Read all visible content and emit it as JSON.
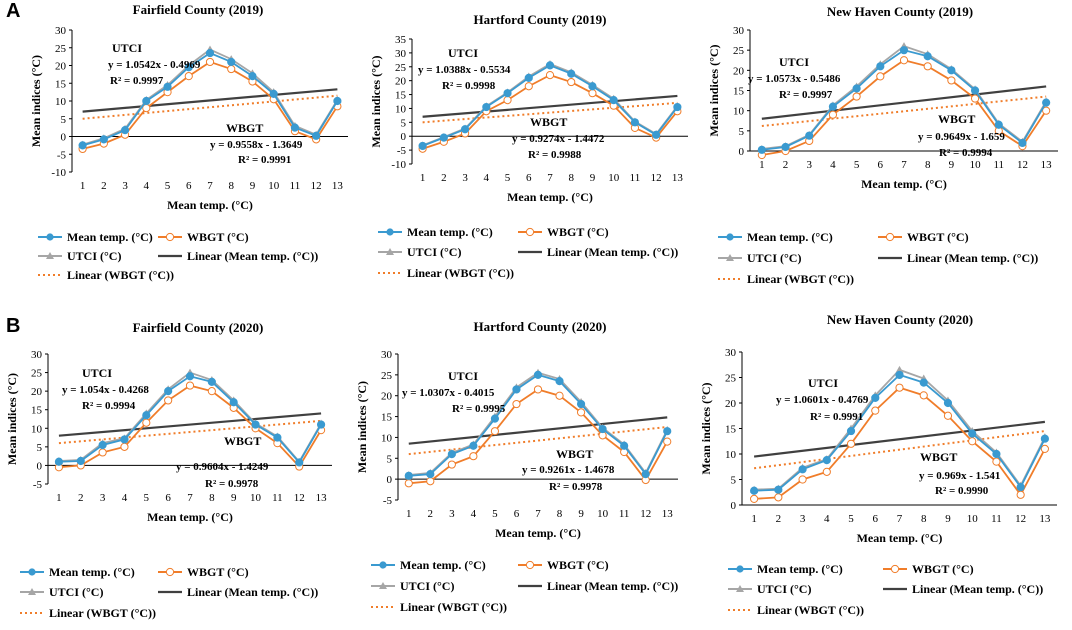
{
  "figure": {
    "panel_a": "A",
    "panel_b": "B"
  },
  "colors": {
    "mean": "#3A9AD0",
    "wbgt": "#F07D2A",
    "utci": "#A6A6A6",
    "linear_mean": "#404040",
    "linear_wbgt": "#F07D2A"
  },
  "legend": {
    "mean": "Mean temp. (°C)",
    "wbgt": "WBGT (°C)",
    "utci": "UTCI (°C)",
    "linear_mean": "Linear (Mean temp. (°C))",
    "linear_wbgt": "Linear (WBGT (°C))"
  },
  "chart_data": [
    {
      "type": "line",
      "title": "Fairfield County (2019)",
      "xlabel": "Mean temp. (°C)",
      "ylabel": "Mean indices (°C)",
      "x": [
        1,
        2,
        3,
        4,
        5,
        6,
        7,
        8,
        9,
        10,
        11,
        12,
        13
      ],
      "ylim": [
        -10,
        30
      ],
      "yticks": [
        -10,
        -5,
        0,
        5,
        10,
        15,
        20,
        25,
        30
      ],
      "series": [
        {
          "name": "Mean temp. (°C)",
          "values": [
            -2.5,
            -0.8,
            1.8,
            10,
            14,
            19.5,
            23.5,
            21,
            17,
            12,
            2.5,
            0.2,
            10
          ]
        },
        {
          "name": "WBGT (°C)",
          "values": [
            -3.5,
            -2,
            0.5,
            8,
            12.5,
            17,
            21,
            19,
            15.5,
            10.5,
            1.5,
            -0.8,
            8.5
          ]
        },
        {
          "name": "UTCI (°C)",
          "values": [
            -2.3,
            -0.5,
            2.2,
            10.3,
            14.5,
            20,
            24.5,
            21.8,
            17.8,
            12.5,
            3,
            0.5,
            10.3
          ]
        }
      ],
      "trend": {
        "mean": [
          7,
          13.3
        ],
        "wbgt": [
          5,
          11.5
        ]
      },
      "annotations": {
        "utci_label": "UTCI",
        "utci_eq": "y = 1.0542x - 0.4969",
        "utci_r2": "R² = 0.9997",
        "wbgt_label": "WBGT",
        "wbgt_eq": "y = 0.9558x - 1.3649",
        "wbgt_r2": "R² = 0.9991"
      }
    },
    {
      "type": "line",
      "title": "Hartford County (2019)",
      "xlabel": "Mean temp. (°C)",
      "ylabel": "Mean indices (°C)",
      "x": [
        1,
        2,
        3,
        4,
        5,
        6,
        7,
        8,
        9,
        10,
        11,
        12,
        13
      ],
      "ylim": [
        -10,
        35
      ],
      "yticks": [
        -10,
        -5,
        0,
        5,
        10,
        15,
        20,
        25,
        30,
        35
      ],
      "series": [
        {
          "name": "Mean temp. (°C)",
          "values": [
            -3.5,
            -0.5,
            2.5,
            10.5,
            15.5,
            21,
            25.5,
            22.5,
            18,
            13,
            5,
            0.5,
            10.5
          ]
        },
        {
          "name": "WBGT (°C)",
          "values": [
            -4.5,
            -2,
            1,
            9,
            13,
            18,
            22,
            19.5,
            15.5,
            11,
            3,
            -0.5,
            9
          ]
        },
        {
          "name": "UTCI (°C)",
          "values": [
            -3.3,
            -0.3,
            2.8,
            10.8,
            15.8,
            21.5,
            26,
            23,
            18.5,
            13.5,
            5.3,
            0.8,
            10.8
          ]
        }
      ],
      "trend": {
        "mean": [
          7,
          14.5
        ],
        "wbgt": [
          5,
          12
        ]
      },
      "annotations": {
        "utci_label": "UTCI",
        "utci_eq": "y = 1.0388x - 0.5534",
        "utci_r2": "R² = 0.9998",
        "wbgt_label": "WBGT",
        "wbgt_eq": "y = 0.9274x - 1.4472",
        "wbgt_r2": "R² = 0.9988"
      }
    },
    {
      "type": "line",
      "title": "New Haven County (2019)",
      "xlabel": "Mean temp. (°C)",
      "ylabel": "Mean indices (°C)",
      "x": [
        1,
        2,
        3,
        4,
        5,
        6,
        7,
        8,
        9,
        10,
        11,
        12,
        13
      ],
      "ylim": [
        0,
        30
      ],
      "yticks": [
        0,
        5,
        10,
        15,
        20,
        25,
        30
      ],
      "series": [
        {
          "name": "Mean temp. (°C)",
          "values": [
            0.3,
            1,
            3.8,
            11,
            15.5,
            21,
            25,
            23.5,
            20,
            15,
            6.5,
            2,
            12
          ]
        },
        {
          "name": "WBGT (°C)",
          "values": [
            -1,
            0,
            2.5,
            9,
            13.5,
            18.5,
            22.5,
            21,
            17.5,
            13,
            5,
            1.2,
            10
          ]
        },
        {
          "name": "UTCI (°C)",
          "values": [
            0.5,
            1.2,
            4,
            11.3,
            16,
            21.5,
            26,
            24,
            20.3,
            15.3,
            6.8,
            2.3,
            12.3
          ]
        }
      ],
      "trend": {
        "mean": [
          8,
          16
        ],
        "wbgt": [
          6.2,
          13.5
        ]
      },
      "annotations": {
        "utci_label": "UTCI",
        "utci_eq": "y = 1.0573x - 0.5486",
        "utci_r2": "R² = 0.9997",
        "wbgt_label": "WBGT",
        "wbgt_eq": "y = 0.9649x - 1.659",
        "wbgt_r2": "R² = 0.9994"
      }
    },
    {
      "type": "line",
      "title": "Fairfield County (2020)",
      "xlabel": "Mean temp. (°C)",
      "ylabel": "Mean indices (°C)",
      "x": [
        1,
        2,
        3,
        4,
        5,
        6,
        7,
        8,
        9,
        10,
        11,
        12,
        13
      ],
      "ylim": [
        -5,
        30
      ],
      "yticks": [
        -5,
        0,
        5,
        10,
        15,
        20,
        25,
        30
      ],
      "series": [
        {
          "name": "Mean temp. (°C)",
          "values": [
            1,
            1.2,
            5.5,
            7,
            13.5,
            20,
            24,
            22.5,
            17,
            11,
            7.5,
            0.8,
            11
          ]
        },
        {
          "name": "WBGT (°C)",
          "values": [
            -0.5,
            0,
            3.5,
            5,
            11.5,
            17.5,
            21.5,
            20,
            15.5,
            10,
            6,
            -0.3,
            9.5
          ]
        },
        {
          "name": "UTCI (°C)",
          "values": [
            1.2,
            1.5,
            6,
            7.3,
            14,
            20.5,
            25,
            23,
            17.5,
            11.3,
            7.8,
            1,
            11.3
          ]
        }
      ],
      "trend": {
        "mean": [
          8,
          14
        ],
        "wbgt": [
          6,
          12
        ]
      },
      "annotations": {
        "utci_label": "UTCI",
        "utci_eq": "y = 1.054x - 0.4268",
        "utci_r2": "R² = 0.9994",
        "wbgt_label": "WBGT",
        "wbgt_eq": "y = 0.9604x - 1.4249",
        "wbgt_r2": "R² = 0.9978"
      }
    },
    {
      "type": "line",
      "title": "Hartford County (2020)",
      "xlabel": "Mean temp. (°C)",
      "ylabel": "Mean indices (°C)",
      "x": [
        1,
        2,
        3,
        4,
        5,
        6,
        7,
        8,
        9,
        10,
        11,
        12,
        13
      ],
      "ylim": [
        -5,
        30
      ],
      "yticks": [
        -5,
        0,
        5,
        10,
        15,
        20,
        25,
        30
      ],
      "series": [
        {
          "name": "Mean temp. (°C)",
          "values": [
            0.8,
            1.2,
            6,
            8,
            14.5,
            21.5,
            25,
            23.5,
            18,
            12,
            8,
            1.2,
            11.5
          ]
        },
        {
          "name": "WBGT (°C)",
          "values": [
            -1,
            -0.5,
            3.5,
            5.5,
            11.5,
            18,
            21.5,
            20,
            16,
            10.5,
            6.5,
            -0.2,
            9
          ]
        },
        {
          "name": "UTCI (°C)",
          "values": [
            1,
            1.5,
            6.3,
            8.3,
            15,
            22,
            25.5,
            24,
            18.5,
            12.3,
            8.3,
            1.5,
            11.8
          ]
        }
      ],
      "trend": {
        "mean": [
          8.5,
          14.8
        ],
        "wbgt": [
          6,
          12.5
        ]
      },
      "annotations": {
        "utci_label": "UTCI",
        "utci_eq": "y = 1.0307x - 0.4015",
        "utci_r2": "R² = 0.9995",
        "wbgt_label": "WBGT",
        "wbgt_eq": "y = 0.9261x - 1.4678",
        "wbgt_r2": "R² = 0.9978"
      }
    },
    {
      "type": "line",
      "title": "New Haven County (2020)",
      "xlabel": "Mean temp. (°C)",
      "ylabel": "Mean indices (°C)",
      "x": [
        1,
        2,
        3,
        4,
        5,
        6,
        7,
        8,
        9,
        10,
        11,
        12,
        13
      ],
      "ylim": [
        0,
        30
      ],
      "yticks": [
        0,
        5,
        10,
        15,
        20,
        25,
        30
      ],
      "series": [
        {
          "name": "Mean temp. (°C)",
          "values": [
            2.8,
            3,
            7,
            8.8,
            14.5,
            21,
            25.5,
            24,
            20,
            14,
            10,
            3.5,
            13
          ]
        },
        {
          "name": "WBGT (°C)",
          "values": [
            1.2,
            1.5,
            5,
            6.5,
            12,
            18.5,
            23,
            21.5,
            17.5,
            12.5,
            8.5,
            2,
            11
          ]
        },
        {
          "name": "UTCI (°C)",
          "values": [
            3,
            3.2,
            7.3,
            9,
            15,
            21.5,
            26.5,
            24.8,
            20.5,
            14.5,
            10.3,
            3.8,
            13.3
          ]
        }
      ],
      "trend": {
        "mean": [
          9.5,
          16.3
        ],
        "wbgt": [
          7.2,
          14.5
        ]
      },
      "annotations": {
        "utci_label": "UTCI",
        "utci_eq": "y = 1.0601x - 0.4769",
        "utci_r2": "R² = 0.9991",
        "wbgt_label": "WBGT",
        "wbgt_eq": "y = 0.969x - 1.541",
        "wbgt_r2": "R² = 0.9990"
      }
    }
  ]
}
